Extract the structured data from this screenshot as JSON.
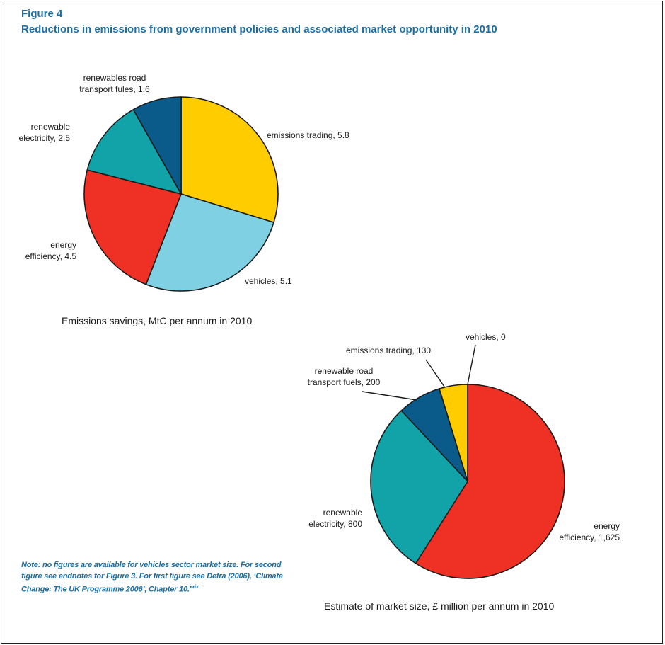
{
  "figure": {
    "label": "Figure 4",
    "title": "Reductions in emissions from government policies and associated market opportunity in 2010",
    "note": "Note: no figures are available for vehicles sector market size. For second figure see endnotes for Figure 3. For first figure see Defra (2006), ‘Climate Change: The UK Programme 2006’, Chapter 10.",
    "note_ref": "xxix"
  },
  "chart_data": [
    {
      "type": "pie",
      "caption": "Emissions savings, MtC per annum in 2010",
      "slices": [
        {
          "label": "emissions trading",
          "value": 5.8,
          "display": "emissions trading, 5.8",
          "color": "#ffcc00"
        },
        {
          "label": "vehicles",
          "value": 5.1,
          "display": "vehicles, 5.1",
          "color": "#7fd0e3"
        },
        {
          "label": "energy efficiency",
          "value": 4.5,
          "display": [
            "energy",
            "efficiency, 4.5"
          ],
          "color": "#ee3124"
        },
        {
          "label": "renewable electricity",
          "value": 2.5,
          "display": [
            "renewable",
            "electricity, 2.5"
          ],
          "color": "#12a3a8"
        },
        {
          "label": "renewables road transport fules",
          "value": 1.6,
          "display": [
            "renewables road",
            "transport fules, 1.6"
          ],
          "color": "#0a5a8a"
        }
      ]
    },
    {
      "type": "pie",
      "caption": "Estimate of market size, £ million per annum in 2010",
      "slices": [
        {
          "label": "vehicles",
          "value": 0,
          "display": "vehicles, 0",
          "color": "#7fd0e3"
        },
        {
          "label": "energy efficiency",
          "value": 1625,
          "display": [
            "energy",
            "efficiency, 1,625"
          ],
          "color": "#ee3124"
        },
        {
          "label": "renewable electricity",
          "value": 800,
          "display": [
            "renewable",
            "electricity, 800"
          ],
          "color": "#12a3a8"
        },
        {
          "label": "renewable road transport fuels",
          "value": 200,
          "display": [
            "renewable road",
            "transport fuels, 200"
          ],
          "color": "#0a5a8a"
        },
        {
          "label": "emissions trading",
          "value": 130,
          "display": "emissions trading, 130",
          "color": "#ffcc00"
        }
      ]
    }
  ]
}
